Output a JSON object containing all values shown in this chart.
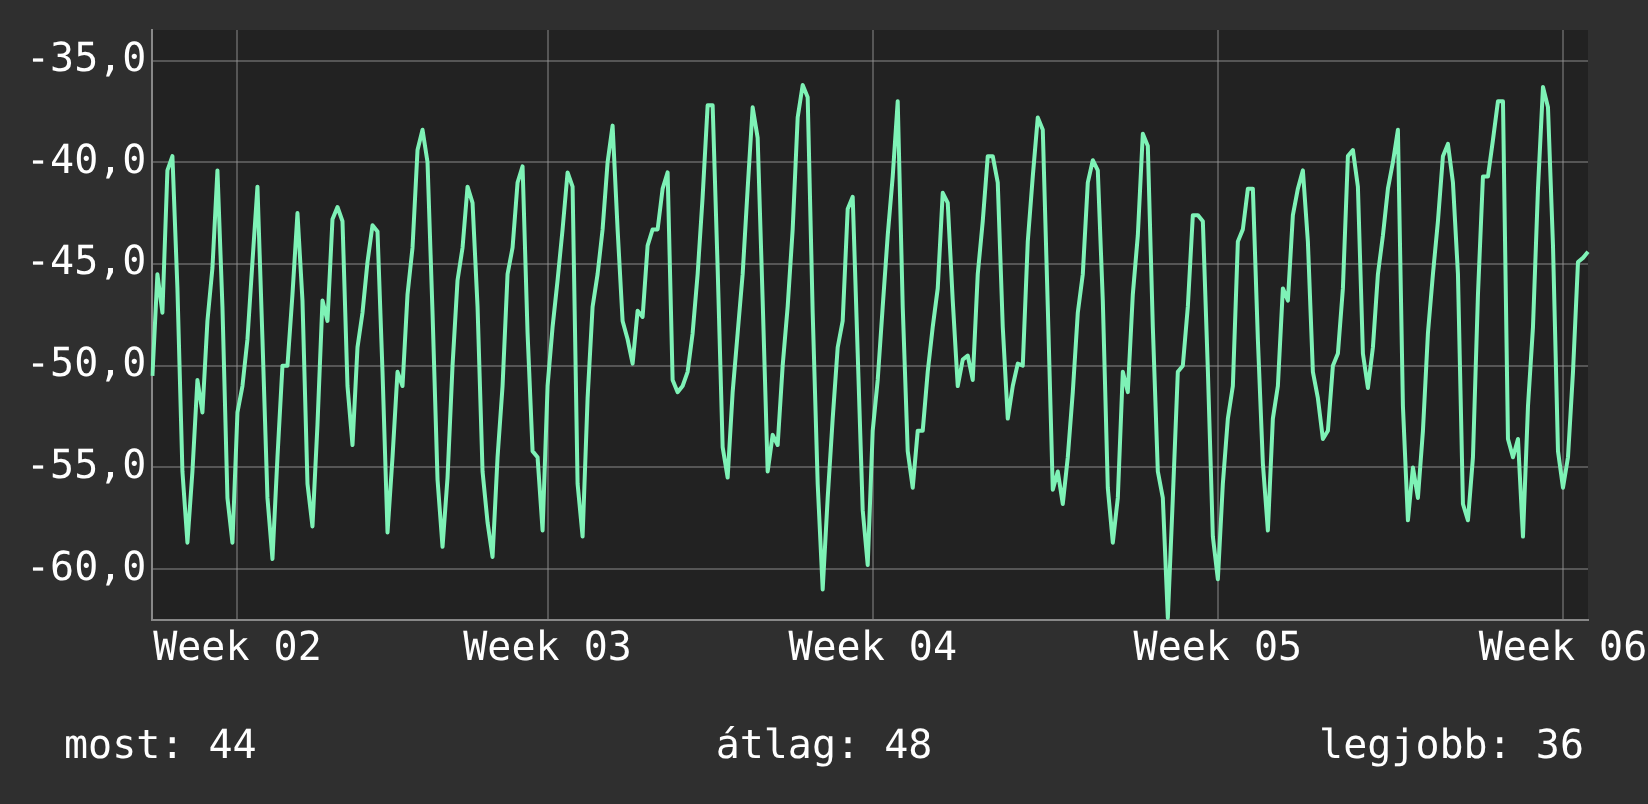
{
  "chart_data": {
    "type": "line",
    "categories": [
      null,
      null,
      null,
      null,
      null,
      null,
      null,
      null,
      null,
      null,
      null,
      null,
      null,
      null,
      null,
      null,
      null,
      "Week 02",
      null,
      null,
      null,
      null,
      null,
      null,
      null,
      null,
      null,
      null,
      null,
      null,
      null,
      null,
      null,
      null,
      null,
      null,
      null,
      null,
      null,
      null,
      null,
      null,
      null,
      null,
      null,
      null,
      null,
      null,
      null,
      null,
      null,
      null,
      null,
      null,
      null,
      null,
      null,
      null,
      null,
      null,
      null,
      null,
      null,
      null,
      null,
      null,
      null,
      null,
      null,
      null,
      null,
      null,
      null,
      null,
      null,
      null,
      null,
      null,
      null,
      "Week 03",
      null,
      null,
      null,
      null,
      null,
      null,
      null,
      null,
      null,
      null,
      null,
      null,
      null,
      null,
      null,
      null,
      null,
      null,
      null,
      null,
      null,
      null,
      null,
      null,
      null,
      null,
      null,
      null,
      null,
      null,
      null,
      null,
      null,
      null,
      null,
      null,
      null,
      null,
      null,
      null,
      null,
      null,
      null,
      null,
      null,
      null,
      null,
      null,
      null,
      null,
      null,
      null,
      null,
      null,
      null,
      null,
      null,
      null,
      null,
      null,
      null,
      null,
      null,
      null,
      "Week 04",
      null,
      null,
      null,
      null,
      null,
      null,
      null,
      null,
      null,
      null,
      null,
      null,
      null,
      null,
      null,
      null,
      null,
      null,
      null,
      null,
      null,
      null,
      null,
      null,
      null,
      null,
      null,
      null,
      null,
      null,
      null,
      null,
      null,
      null,
      null,
      null,
      null,
      null,
      null,
      null,
      null,
      null,
      null,
      null,
      null,
      null,
      null,
      null,
      null,
      null,
      null,
      null,
      null,
      null,
      null,
      null,
      null,
      null,
      null,
      null,
      null,
      null,
      null,
      null,
      null,
      null,
      null,
      null,
      "Week 05",
      null,
      null,
      null,
      null,
      null,
      null,
      null,
      null,
      null,
      null,
      null,
      null,
      null,
      null,
      null,
      null,
      null,
      null,
      null,
      null,
      null,
      null,
      null,
      null,
      null,
      null,
      null,
      null,
      null,
      null,
      null,
      null,
      null,
      null,
      null,
      null,
      null,
      null,
      null,
      null,
      null,
      null,
      null,
      null,
      null,
      null,
      null,
      null,
      null,
      null,
      null,
      null,
      null,
      null,
      null,
      null,
      null,
      null,
      null,
      null,
      null,
      null,
      null,
      null,
      null,
      null,
      null,
      null,
      "Week 06",
      null,
      null,
      null,
      null,
      null
    ],
    "values": [
      -50.5,
      -45.5,
      -47.4,
      -40.4,
      -39.7,
      -46.2,
      -55.2,
      -58.7,
      -55.2,
      -50.7,
      -52.3,
      -47.8,
      -45.2,
      -40.4,
      -47.1,
      -56.5,
      -58.7,
      -52.3,
      -51.0,
      -48.7,
      -44.9,
      -41.2,
      -48.7,
      -56.5,
      -59.5,
      -54.5,
      -50.0,
      -50.0,
      -46.5,
      -42.5,
      -46.8,
      -55.8,
      -57.9,
      -52.9,
      -46.8,
      -47.8,
      -42.8,
      -42.2,
      -42.9,
      -51.0,
      -53.9,
      -49.1,
      -47.4,
      -44.9,
      -43.1,
      -43.4,
      -50.3,
      -58.2,
      -54.5,
      -50.3,
      -51.0,
      -46.5,
      -44.2,
      -39.4,
      -38.4,
      -40.0,
      -47.4,
      -55.6,
      -58.9,
      -55.5,
      -50.0,
      -45.8,
      -44.2,
      -41.2,
      -42.0,
      -47.1,
      -55.2,
      -57.7,
      -59.4,
      -54.5,
      -51.0,
      -45.5,
      -44.2,
      -41.0,
      -40.2,
      -48.4,
      -54.2,
      -54.5,
      -58.1,
      -51.0,
      -48.1,
      -45.8,
      -43.3,
      -40.5,
      -41.2,
      -55.8,
      -58.4,
      -51.6,
      -47.1,
      -45.5,
      -43.3,
      -40.0,
      -38.2,
      -43.3,
      -47.8,
      -48.7,
      -49.9,
      -47.3,
      -47.6,
      -44.1,
      -43.3,
      -43.3,
      -41.3,
      -40.5,
      -50.7,
      -51.3,
      -51.0,
      -50.3,
      -48.4,
      -45.5,
      -41.7,
      -37.2,
      -37.2,
      -45.2,
      -54.0,
      -55.5,
      -51.3,
      -48.4,
      -45.5,
      -41.3,
      -37.3,
      -38.8,
      -46.8,
      -55.2,
      -53.4,
      -53.9,
      -50.0,
      -47.1,
      -43.3,
      -37.8,
      -36.2,
      -36.8,
      -47.4,
      -55.8,
      -61.0,
      -56.5,
      -52.6,
      -49.1,
      -47.8,
      -42.3,
      -41.7,
      -49.4,
      -57.1,
      -59.8,
      -53.2,
      -50.7,
      -47.1,
      -43.6,
      -40.7,
      -37.0,
      -47.1,
      -54.2,
      -56.0,
      -53.2,
      -53.2,
      -50.3,
      -48.1,
      -46.2,
      -41.5,
      -42.0,
      -46.8,
      -51.0,
      -49.7,
      -49.5,
      -50.7,
      -45.5,
      -42.9,
      -39.7,
      -39.7,
      -41.0,
      -48.1,
      -52.6,
      -51.0,
      -49.9,
      -50.0,
      -43.9,
      -40.7,
      -37.8,
      -38.4,
      -47.1,
      -56.1,
      -55.2,
      -56.8,
      -54.5,
      -51.3,
      -47.4,
      -45.5,
      -41.0,
      -39.9,
      -40.4,
      -46.8,
      -56.0,
      -58.7,
      -56.5,
      -50.3,
      -51.3,
      -46.5,
      -43.6,
      -38.6,
      -39.2,
      -48.1,
      -55.2,
      -56.5,
      -62.4,
      -56.5,
      -50.3,
      -50.0,
      -47.1,
      -42.6,
      -42.6,
      -42.9,
      -50.2,
      -58.4,
      -60.5,
      -55.8,
      -52.6,
      -51.0,
      -43.9,
      -43.3,
      -41.3,
      -41.3,
      -48.7,
      -54.8,
      -58.1,
      -52.6,
      -51.0,
      -46.2,
      -46.8,
      -42.6,
      -41.3,
      -40.4,
      -43.9,
      -50.3,
      -51.6,
      -53.6,
      -53.2,
      -50.0,
      -49.4,
      -46.2,
      -39.7,
      -39.4,
      -41.2,
      -49.4,
      -51.1,
      -49.1,
      -45.5,
      -43.6,
      -41.3,
      -40.0,
      -38.4,
      -52.0,
      -57.6,
      -55.0,
      -56.5,
      -53.2,
      -48.4,
      -45.5,
      -42.9,
      -39.7,
      -39.1,
      -41.0,
      -45.5,
      -56.8,
      -57.6,
      -54.5,
      -46.5,
      -40.7,
      -40.7,
      -38.9,
      -37.0,
      -37.0,
      -53.6,
      -54.5,
      -53.6,
      -58.4,
      -52.0,
      -48.1,
      -41.3,
      -36.3,
      -37.3,
      -44.1,
      -54.2,
      -56.0,
      -54.5,
      -50.3,
      -44.9,
      -44.7,
      -44.4
    ],
    "color": "#7ef2b6",
    "ylim": [
      -62.5,
      -33.5
    ],
    "yticks": [
      {
        "value": -60,
        "label": "-60,0"
      },
      {
        "value": -55,
        "label": "-55,0"
      },
      {
        "value": -50,
        "label": "-50,0"
      },
      {
        "value": -45,
        "label": "-45,0"
      },
      {
        "value": -40,
        "label": "-40,0"
      },
      {
        "value": -35,
        "label": "-35,0"
      }
    ],
    "grid": true,
    "annotations": [
      "most: 44",
      "átlag: 48",
      "legjobb: 36"
    ]
  }
}
